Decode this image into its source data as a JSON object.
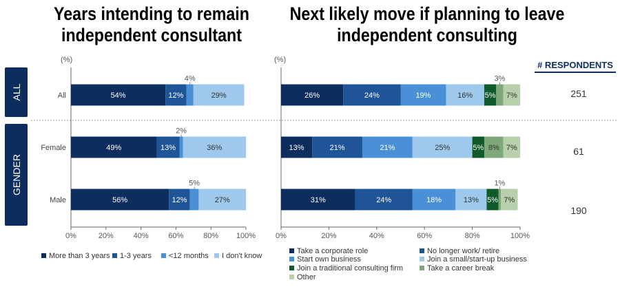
{
  "titles": {
    "left": "Years intending to remain independent consultant",
    "right": "Next likely move if planning to leave independent consulting"
  },
  "segments": [
    {
      "label": "ALL"
    },
    {
      "label": "GENDER"
    }
  ],
  "respondents": {
    "header": "# RESPONDENTS",
    "values": [
      "251",
      "61",
      "190"
    ]
  },
  "chart_data": [
    {
      "type": "bar",
      "orientation": "horizontal",
      "stacked": true,
      "title": "Years intending to remain independent consultant",
      "unit_label": "(%)",
      "categories": [
        "All",
        "Female",
        "Male"
      ],
      "xlim": [
        0,
        100
      ],
      "x_ticks": [
        "0%",
        "20%",
        "40%",
        "60%",
        "80%",
        "100%"
      ],
      "legend_position": "bottom",
      "series": [
        {
          "name": "More than 3 years",
          "color": "#0d2d5e",
          "values": [
            54,
            49,
            56
          ]
        },
        {
          "name": "1-3 years",
          "color": "#1f5597",
          "values": [
            12,
            13,
            12
          ]
        },
        {
          "name": "<12 months",
          "color": "#4a90d6",
          "values": [
            4,
            2,
            5
          ]
        },
        {
          "name": "I don't know",
          "color": "#9ec8ec",
          "values": [
            29,
            36,
            27
          ]
        }
      ]
    },
    {
      "type": "bar",
      "orientation": "horizontal",
      "stacked": true,
      "title": "Next likely move if planning to leave independent consulting",
      "unit_label": "(%)",
      "categories": [
        "All",
        "Female",
        "Male"
      ],
      "xlim": [
        0,
        100
      ],
      "x_ticks": [
        "0%",
        "20%",
        "40%",
        "60%",
        "80%",
        "100%"
      ],
      "legend_position": "bottom",
      "series": [
        {
          "name": "Take a corporate role",
          "color": "#0d2d5e",
          "values": [
            26,
            13,
            31
          ]
        },
        {
          "name": "No longer work/ retire",
          "color": "#1f5597",
          "values": [
            24,
            21,
            24
          ]
        },
        {
          "name": "Start own business",
          "color": "#4a90d6",
          "values": [
            19,
            21,
            18
          ]
        },
        {
          "name": "Join a small/start-up business",
          "color": "#9ec8ec",
          "values": [
            16,
            25,
            13
          ]
        },
        {
          "name": "Join a traditional consulting firm",
          "color": "#0e5a2a",
          "values": [
            5,
            5,
            5
          ]
        },
        {
          "name": "Take a career break",
          "color": "#7fa878",
          "values": [
            3,
            8,
            1
          ]
        },
        {
          "name": "Other",
          "color": "#b7cfaa",
          "values": [
            7,
            7,
            7
          ]
        }
      ]
    }
  ]
}
